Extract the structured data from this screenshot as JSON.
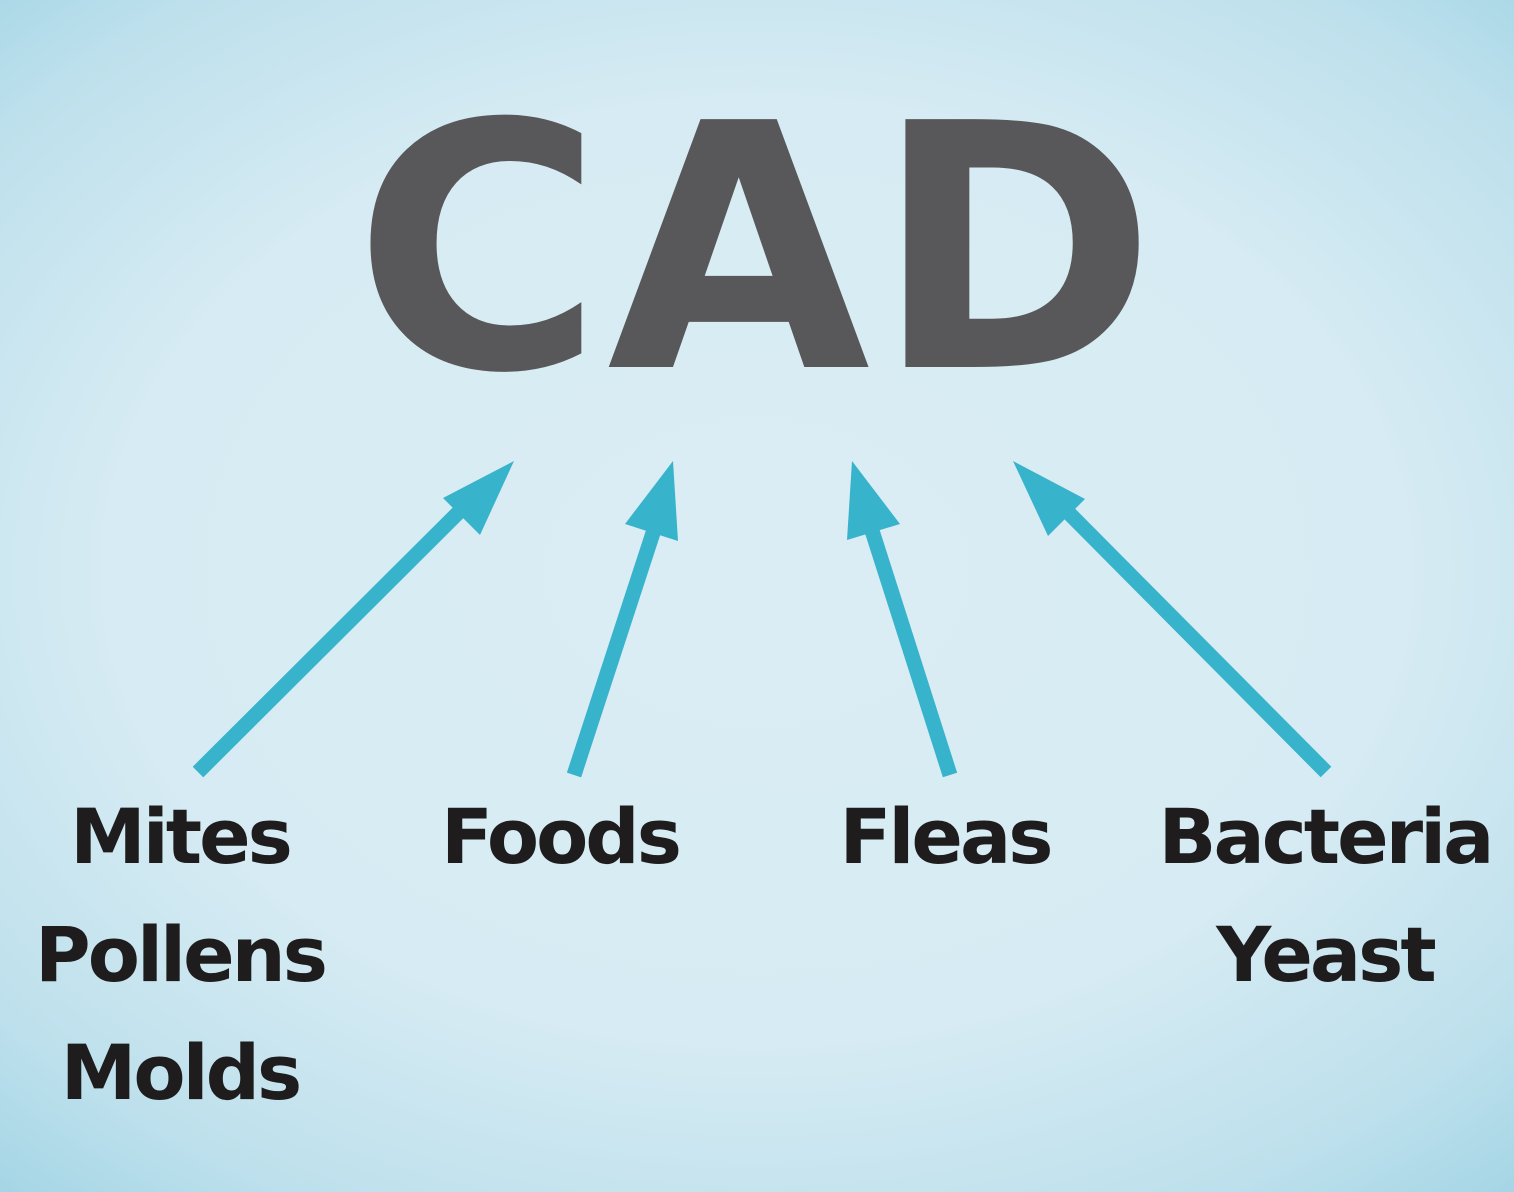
{
  "title": "CAD",
  "colors": {
    "title": "#58585a",
    "arrow": "#38b3cc",
    "label": "#1e1c1d"
  },
  "causes": [
    {
      "id": "mites",
      "lines": [
        "Mites",
        "Pollens",
        "Molds"
      ]
    },
    {
      "id": "foods",
      "lines": [
        "Foods"
      ]
    },
    {
      "id": "fleas",
      "lines": [
        "Fleas"
      ]
    },
    {
      "id": "bacteria",
      "lines": [
        "Bacteria",
        "Yeast"
      ]
    }
  ]
}
